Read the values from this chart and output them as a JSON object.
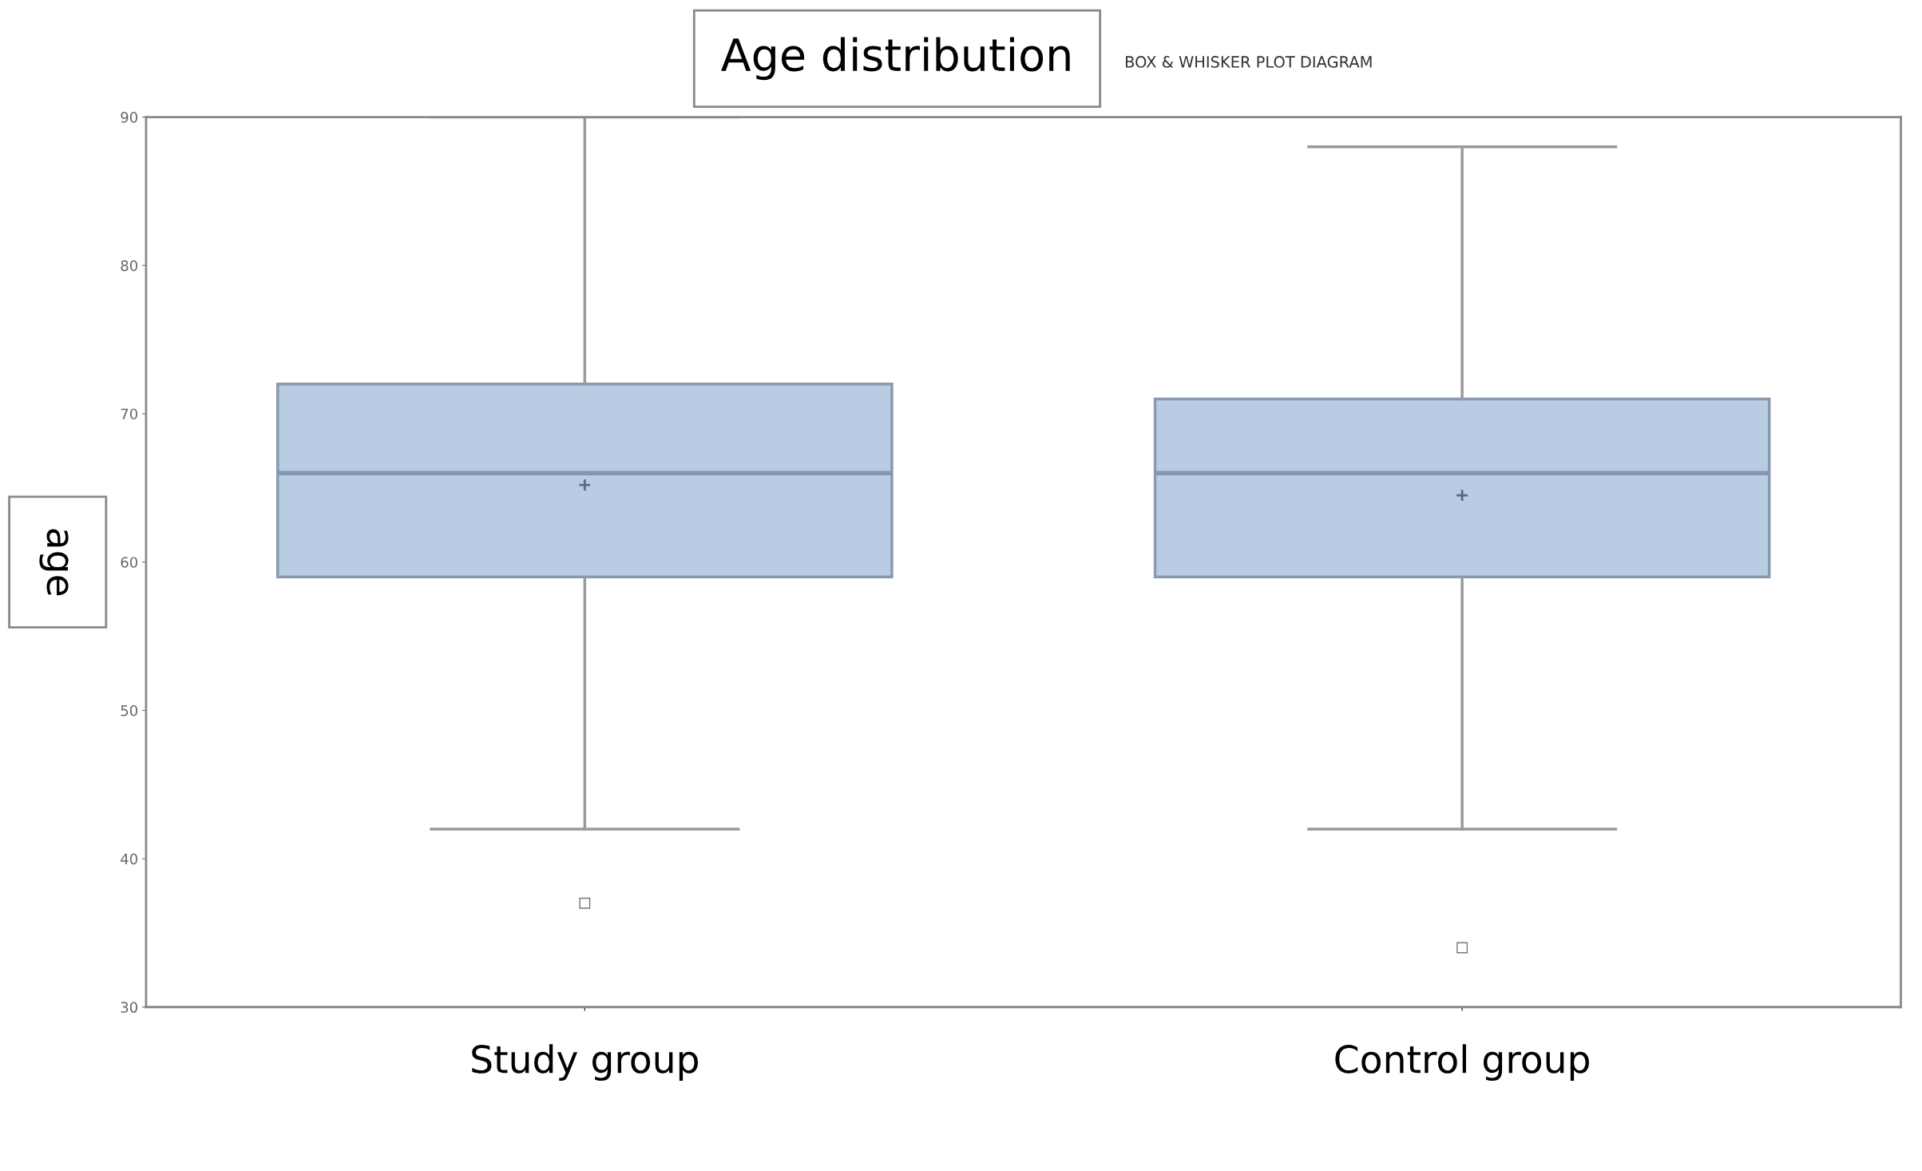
{
  "chart_data": {
    "type": "box",
    "title": "Age distribution",
    "subtitle": "BOX & WHISKER PLOT DIAGRAM",
    "ylabel": "age",
    "categories": [
      "Study group",
      "Control group"
    ],
    "boxes": [
      {
        "low": 42,
        "q1": 59,
        "median": 66,
        "q3": 72,
        "high": 90,
        "mean": 65.2,
        "outliers": [
          37
        ]
      },
      {
        "low": 42,
        "q1": 59,
        "median": 66,
        "q3": 71,
        "high": 88,
        "mean": 64.5,
        "outliers": [
          34
        ]
      }
    ],
    "color": "#b8cce4",
    "ylim": [
      30,
      90
    ],
    "yticks": [
      30,
      40,
      50,
      60,
      70,
      80,
      90
    ],
    "grid": false,
    "legend": false
  }
}
